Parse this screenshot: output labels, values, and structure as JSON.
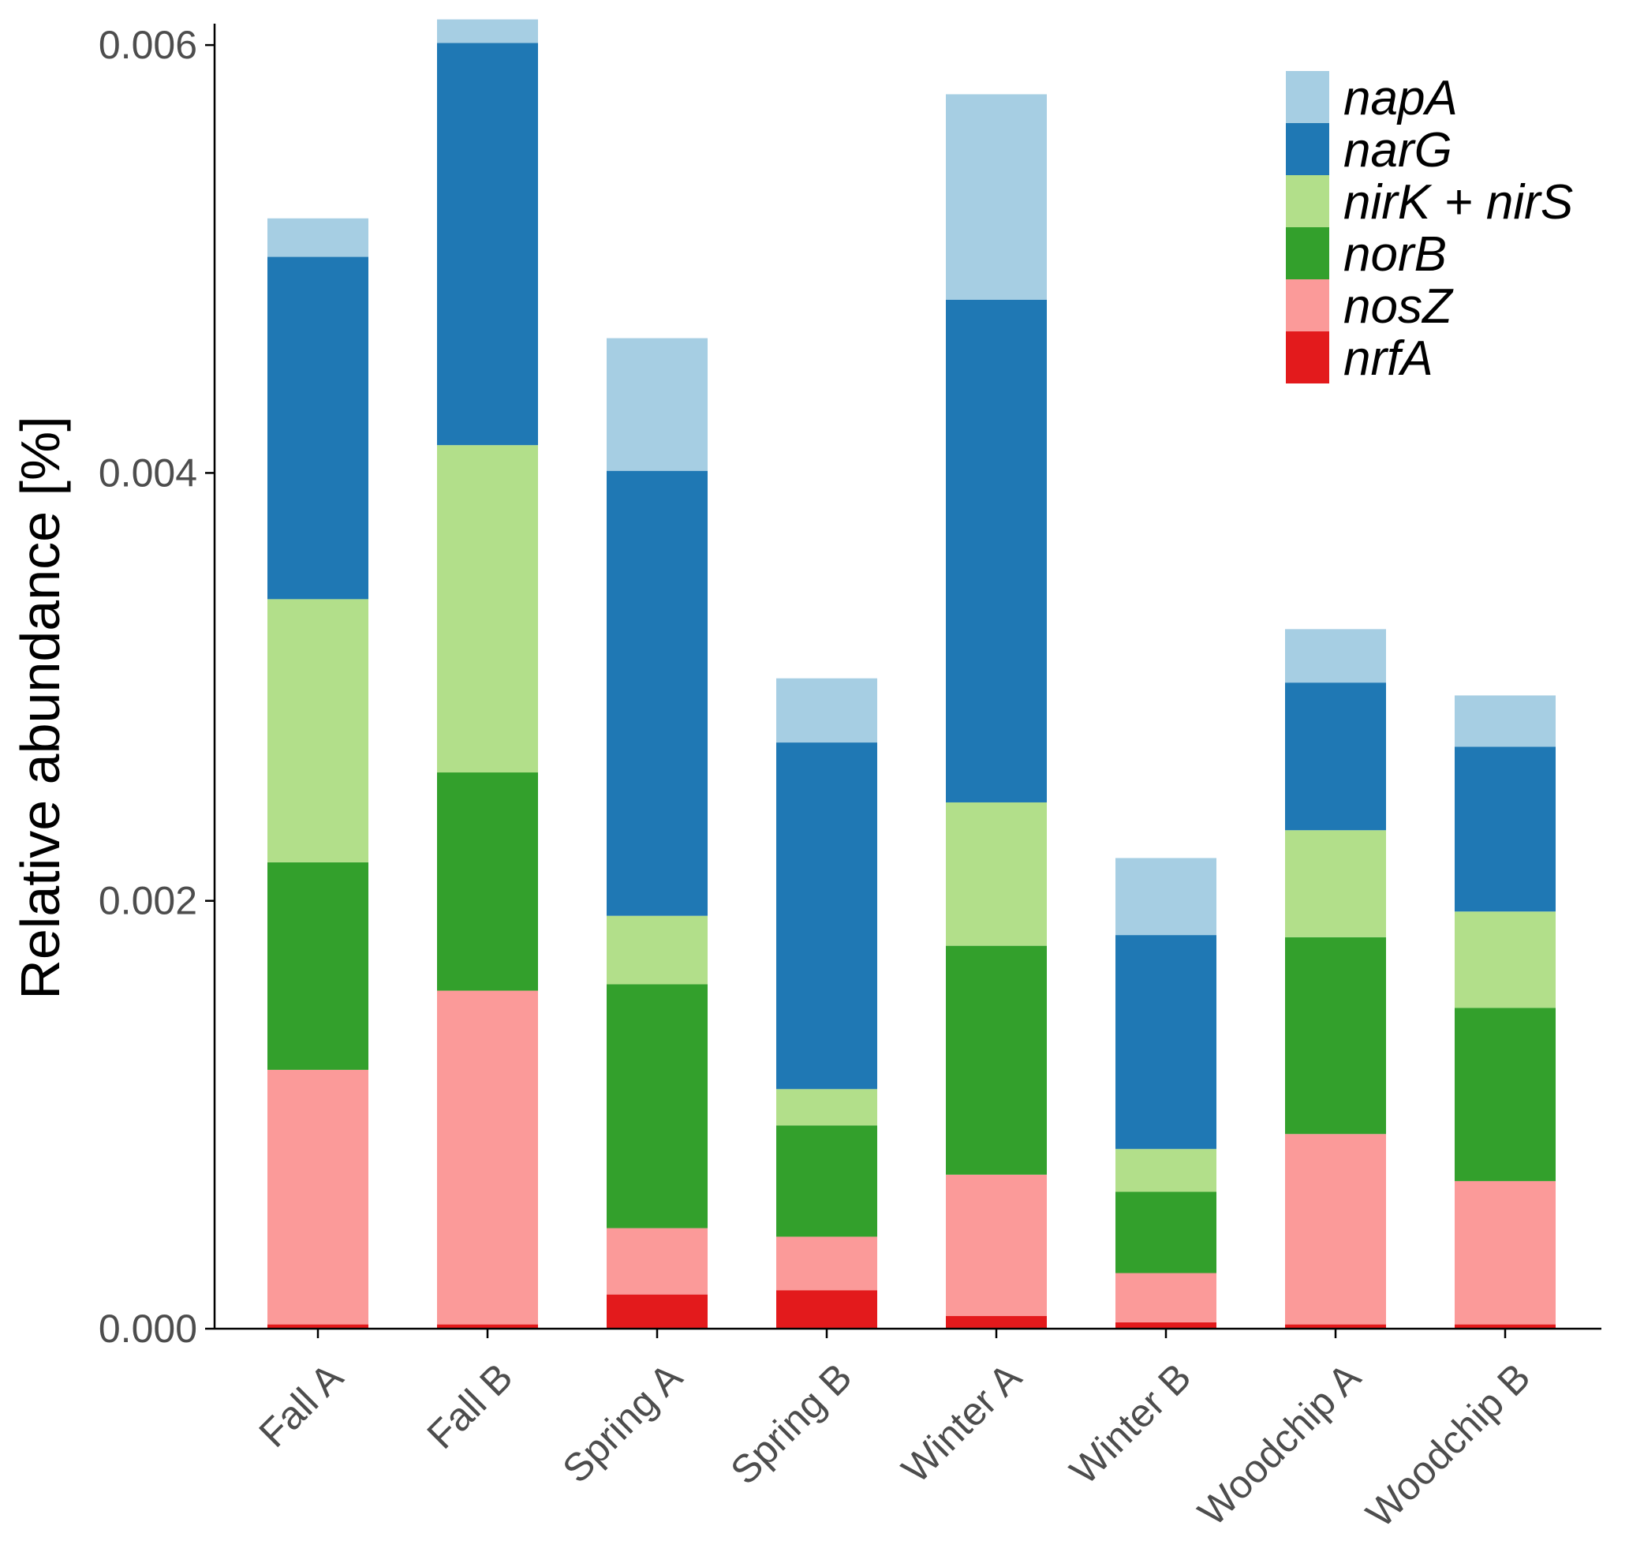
{
  "chart_data": {
    "type": "bar",
    "stacked": true,
    "title": "",
    "xlabel": "",
    "ylabel": "Relative abundance [%]",
    "ylim": [
      0,
      0.0061
    ],
    "yticks": [
      0.0,
      0.002,
      0.004,
      0.006
    ],
    "ytick_labels": [
      "0.000",
      "0.002",
      "0.004",
      "0.006"
    ],
    "grid": false,
    "legend_position": "top-right",
    "categories": [
      "Fall A",
      "Fall B",
      "Spring A",
      "Spring B",
      "Winter A",
      "Winter B",
      "Woodchip A",
      "Woodchip B"
    ],
    "series": [
      {
        "name": "nrfA",
        "color": "#e31a1c",
        "values": [
          2e-05,
          2e-05,
          0.00016,
          0.00018,
          6e-05,
          3e-05,
          2e-05,
          2e-05
        ]
      },
      {
        "name": "nosZ",
        "color": "#fb9a99",
        "values": [
          0.00119,
          0.00156,
          0.00031,
          0.00025,
          0.00066,
          0.00023,
          0.00089,
          0.00067
        ]
      },
      {
        "name": "norB",
        "color": "#33a02c",
        "values": [
          0.00097,
          0.00102,
          0.00114,
          0.00052,
          0.00107,
          0.00038,
          0.00092,
          0.00081
        ]
      },
      {
        "name": "nirK + nirS",
        "color": "#b2df8a",
        "values": [
          0.00123,
          0.00153,
          0.00032,
          0.00017,
          0.00067,
          0.0002,
          0.0005,
          0.00045
        ]
      },
      {
        "name": "narG",
        "color": "#1f78b4",
        "values": [
          0.0016,
          0.00188,
          0.00208,
          0.00162,
          0.00235,
          0.001,
          0.00069,
          0.00077
        ]
      },
      {
        "name": "napA",
        "color": "#a6cee3",
        "values": [
          0.00018,
          0.00011,
          0.00062,
          0.0003,
          0.00096,
          0.00036,
          0.00025,
          0.00024
        ]
      }
    ],
    "legend_order": [
      "napA",
      "narG",
      "nirK + nirS",
      "norB",
      "nosZ",
      "nrfA"
    ]
  }
}
